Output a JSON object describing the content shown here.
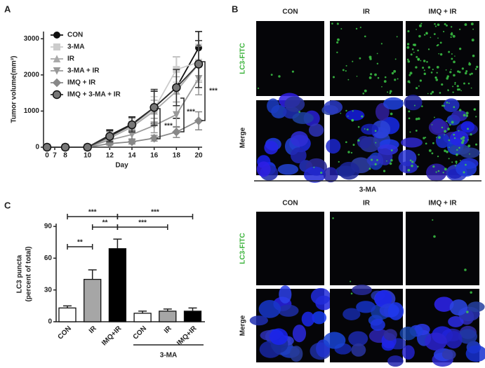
{
  "panel_labels": [
    "A",
    "B",
    "C"
  ],
  "chart_data": [
    {
      "type": "line",
      "y_label": "Tumor volume(mm³)",
      "x_label": "Day",
      "x": [
        0,
        8,
        10,
        12,
        14,
        16,
        18,
        20
      ],
      "xlim": [
        0,
        20
      ],
      "xticks": [
        0,
        7,
        8,
        10,
        12,
        14,
        16,
        18,
        20
      ],
      "ylim": [
        0,
        3200
      ],
      "yticks": [
        0,
        1000,
        2000,
        3000
      ],
      "series": [
        {
          "name": "CON",
          "color": "#111111",
          "marker": "circle",
          "values": [
            0,
            0,
            0,
            330,
            640,
            1100,
            1650,
            2750
          ],
          "errors": [
            0,
            0,
            0,
            150,
            200,
            450,
            850,
            450
          ]
        },
        {
          "name": "3-MA",
          "color": "#cccccc",
          "marker": "square",
          "values": [
            0,
            0,
            0,
            300,
            600,
            1050,
            2150,
            2350
          ],
          "errors": [
            0,
            0,
            0,
            120,
            180,
            350,
            350,
            500
          ]
        },
        {
          "name": "IR",
          "color": "#aaaaaa",
          "marker": "triangle",
          "values": [
            0,
            0,
            0,
            250,
            560,
            1000,
            1550,
            2300
          ],
          "errors": [
            0,
            0,
            0,
            100,
            150,
            300,
            400,
            500
          ]
        },
        {
          "name": "3-MA + IR",
          "color": "#999999",
          "marker": "triangle-down",
          "values": [
            0,
            0,
            0,
            200,
            350,
            600,
            900,
            1900
          ],
          "errors": [
            0,
            0,
            0,
            80,
            120,
            200,
            350,
            450
          ]
        },
        {
          "name": "IMQ + IR",
          "color": "#888888",
          "marker": "diamond",
          "values": [
            0,
            0,
            0,
            100,
            150,
            250,
            420,
            730
          ],
          "errors": [
            0,
            0,
            0,
            40,
            60,
            80,
            150,
            250
          ]
        },
        {
          "name": "IMQ + 3-MA + IR",
          "color": "#333333",
          "marker": "big-circle",
          "values": [
            0,
            0,
            0,
            300,
            620,
            1100,
            1650,
            2300
          ],
          "errors": [
            0,
            0,
            0,
            150,
            200,
            500,
            500,
            650
          ]
        }
      ],
      "legend": "upper left",
      "annotations": [
        "***",
        "***",
        "***"
      ]
    },
    {
      "type": "bar",
      "y_label": [
        "LC3 puncta",
        "(percent of total)"
      ],
      "categories": [
        "CON",
        "IR",
        "IMQ+IR",
        "CON",
        "IR",
        "IMQ+IR"
      ],
      "values": [
        13,
        40,
        69,
        8,
        10,
        10
      ],
      "errors": [
        2,
        9,
        9,
        2,
        2,
        3
      ],
      "colors": [
        "#ffffff",
        "#a6a6a6",
        "#000000",
        "#ffffff",
        "#a6a6a6",
        "#000000"
      ],
      "ylim": [
        0,
        90
      ],
      "yticks": [
        0,
        30,
        60,
        90
      ],
      "group_label": "3-MA",
      "annotations": [
        "**",
        "**",
        "***",
        "***",
        "***"
      ]
    }
  ],
  "panel_b": {
    "columns": [
      "CON",
      "IR",
      "IMQ + IR"
    ],
    "rows": [
      "LC3-FITC",
      "Merge"
    ],
    "group_label": "3-MA",
    "lower_columns": [
      "CON",
      "IR",
      "IMQ + IR"
    ],
    "lower_rows": [
      "LC3-FITC",
      "Merge"
    ]
  }
}
